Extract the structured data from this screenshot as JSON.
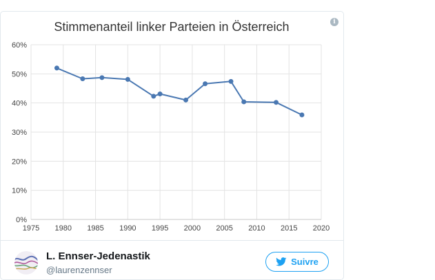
{
  "chart_data": {
    "type": "line",
    "title": "Stimmenanteil linker Parteien in Österreich",
    "xlabel": "",
    "ylabel": "",
    "xlim": [
      1975,
      2020
    ],
    "ylim": [
      0,
      60
    ],
    "x_ticks": [
      1975,
      1980,
      1985,
      1990,
      1995,
      2000,
      2005,
      2010,
      2015,
      2020
    ],
    "y_ticks": [
      0,
      10,
      20,
      30,
      40,
      50,
      60
    ],
    "y_tick_format": "percent",
    "grid": true,
    "legend": "none",
    "line_color": "#4a78b2",
    "series": [
      {
        "x": [
          1979,
          1983,
          1986,
          1990,
          1994,
          1995,
          1999,
          2002,
          2006,
          2008,
          2013,
          2017
        ],
        "y": [
          52.0,
          48.3,
          48.7,
          48.1,
          42.3,
          43.1,
          41.0,
          46.6,
          47.4,
          40.4,
          40.2,
          35.9
        ]
      }
    ]
  },
  "info_icon": "info-icon",
  "author": {
    "name": "L. Ennser-Jedenastik",
    "handle": "@laurenzennser"
  },
  "follow_button": {
    "label": "Suivre",
    "icon": "twitter-bird-icon",
    "color": "#1da1f2"
  }
}
